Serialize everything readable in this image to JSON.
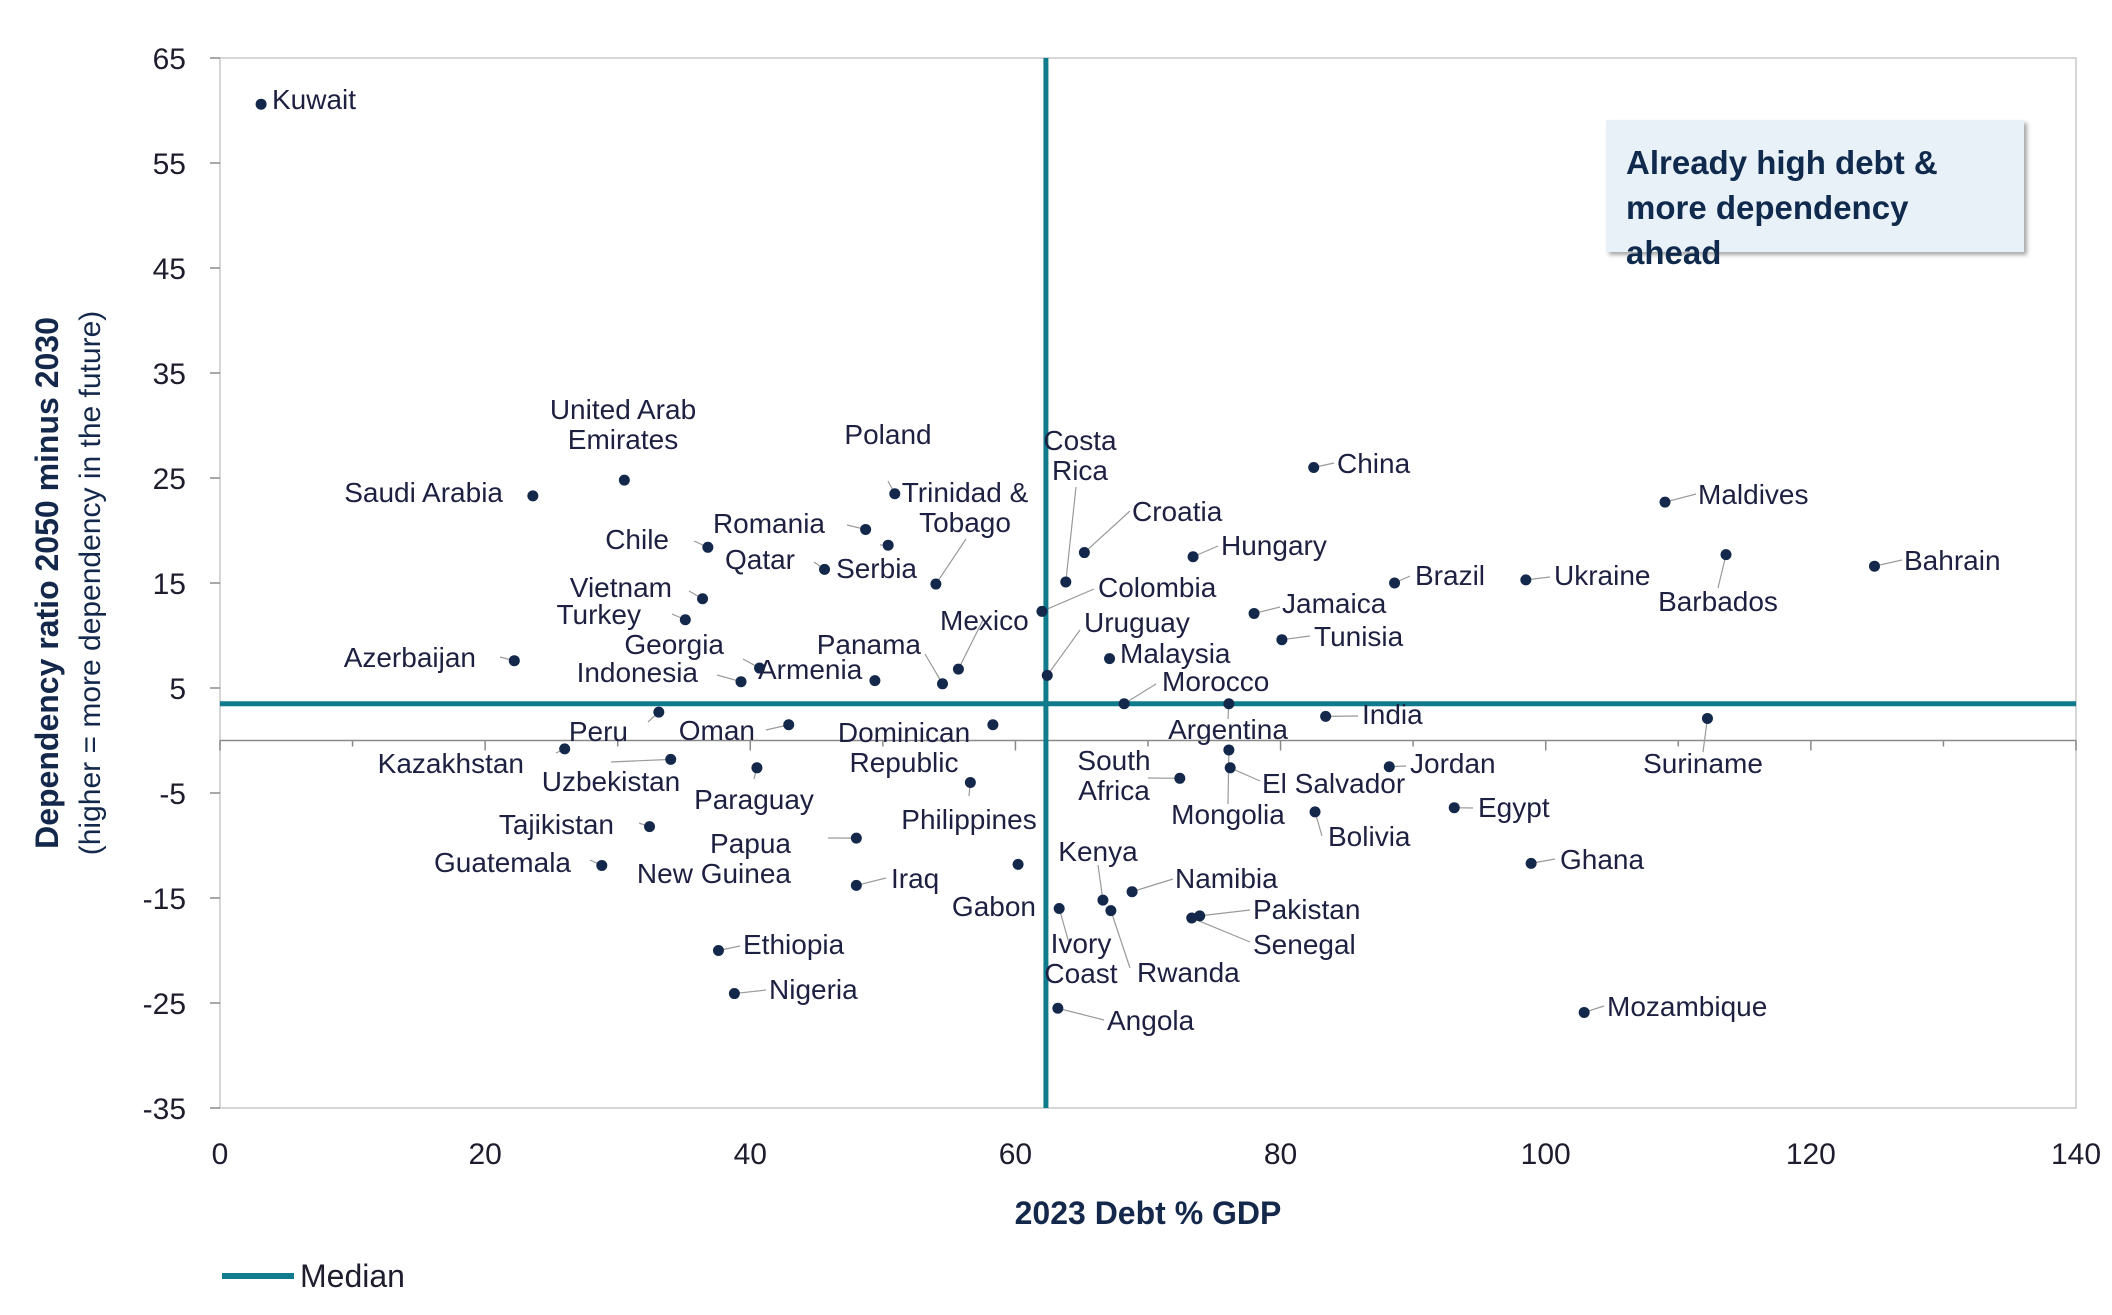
{
  "chart_data": {
    "type": "scatter",
    "title": "",
    "xlabel": "2023 Debt % GDP",
    "ylabel": "Dependency ratio 2050 minus 2030",
    "ylabel_sub": "(higher = more dependency in the future)",
    "xlim": [
      0,
      140
    ],
    "ylim": [
      -35,
      65
    ],
    "x_ticks": [
      0,
      20,
      40,
      60,
      80,
      100,
      120,
      140
    ],
    "y_ticks": [
      65,
      55,
      45,
      35,
      25,
      15,
      5,
      -5,
      -15,
      -25,
      -35
    ],
    "grid": false,
    "legend": {
      "position": "bottom-left",
      "entries": [
        {
          "name": "Median",
          "color": "#0f7b8c"
        }
      ]
    },
    "median": {
      "x": 62.3,
      "y": 3.5
    },
    "annotation": "Already high debt & more dependency ahead",
    "colors": {
      "point": "#13284b",
      "median": "#0f7b8c",
      "leader": "#9a9a9a"
    },
    "points": [
      {
        "name": "Kuwait",
        "label_lines": [
          "Kuwait"
        ],
        "x": 3.1,
        "y": 60.6
      },
      {
        "name": "Saudi Arabia",
        "label_lines": [
          "Saudi Arabia"
        ],
        "x": 23.6,
        "y": 23.3
      },
      {
        "name": "United Arab Emirates",
        "label_lines": [
          "United Arab",
          "Emirates"
        ],
        "x": 30.5,
        "y": 24.8
      },
      {
        "name": "Chile",
        "label_lines": [
          "Chile"
        ],
        "x": 36.8,
        "y": 18.4
      },
      {
        "name": "Romania",
        "label_lines": [
          "Romania"
        ],
        "x": 48.7,
        "y": 20.1
      },
      {
        "name": "Poland",
        "label_lines": [
          "Poland"
        ],
        "x": 50.9,
        "y": 23.5
      },
      {
        "name": "Trinidad & Tobago",
        "label_lines": [
          "Trinidad &",
          "Tobago"
        ],
        "x": 54.0,
        "y": 14.9
      },
      {
        "name": "Serbia",
        "label_lines": [
          "Serbia"
        ],
        "x": 50.4,
        "y": 18.6
      },
      {
        "name": "Qatar",
        "label_lines": [
          "Qatar"
        ],
        "x": 45.6,
        "y": 16.3
      },
      {
        "name": "Vietnam",
        "label_lines": [
          "Vietnam"
        ],
        "x": 36.4,
        "y": 13.5
      },
      {
        "name": "Turkey",
        "label_lines": [
          "Turkey"
        ],
        "x": 35.1,
        "y": 11.5
      },
      {
        "name": "Azerbaijan",
        "label_lines": [
          "Azerbaijan"
        ],
        "x": 22.2,
        "y": 7.6
      },
      {
        "name": "Georgia",
        "label_lines": [
          "Georgia"
        ],
        "x": 40.7,
        "y": 6.9
      },
      {
        "name": "Indonesia",
        "label_lines": [
          "Indonesia"
        ],
        "x": 39.3,
        "y": 5.6
      },
      {
        "name": "Armenia",
        "label_lines": [
          "Armenia"
        ],
        "x": 49.4,
        "y": 5.7
      },
      {
        "name": "Panama",
        "label_lines": [
          "Panama"
        ],
        "x": 54.5,
        "y": 5.4
      },
      {
        "name": "Mexico",
        "label_lines": [
          "Mexico"
        ],
        "x": 55.7,
        "y": 6.8
      },
      {
        "name": "Costa Rica",
        "label_lines": [
          "Costa",
          "Rica"
        ],
        "x": 63.8,
        "y": 15.1
      },
      {
        "name": "Croatia",
        "label_lines": [
          "Croatia"
        ],
        "x": 65.2,
        "y": 17.9
      },
      {
        "name": "Colombia",
        "label_lines": [
          "Colombia"
        ],
        "x": 62.0,
        "y": 12.3
      },
      {
        "name": "Uruguay",
        "label_lines": [
          "Uruguay"
        ],
        "x": 62.4,
        "y": 6.2
      },
      {
        "name": "Malaysia",
        "label_lines": [
          "Malaysia"
        ],
        "x": 67.1,
        "y": 7.8
      },
      {
        "name": "Morocco",
        "label_lines": [
          "Morocco"
        ],
        "x": 68.2,
        "y": 3.5
      },
      {
        "name": "China",
        "label_lines": [
          "China"
        ],
        "x": 82.5,
        "y": 26.0
      },
      {
        "name": "Hungary",
        "label_lines": [
          "Hungary"
        ],
        "x": 73.4,
        "y": 17.5
      },
      {
        "name": "Jamaica",
        "label_lines": [
          "Jamaica"
        ],
        "x": 78.0,
        "y": 12.1
      },
      {
        "name": "Tunisia",
        "label_lines": [
          "Tunisia"
        ],
        "x": 80.1,
        "y": 9.6
      },
      {
        "name": "Brazil",
        "label_lines": [
          "Brazil"
        ],
        "x": 88.6,
        "y": 15.0
      },
      {
        "name": "Ukraine",
        "label_lines": [
          "Ukraine"
        ],
        "x": 98.5,
        "y": 15.3
      },
      {
        "name": "Maldives",
        "label_lines": [
          "Maldives"
        ],
        "x": 109.0,
        "y": 22.7
      },
      {
        "name": "Barbados",
        "label_lines": [
          "Barbados"
        ],
        "x": 113.6,
        "y": 17.7
      },
      {
        "name": "Bahrain",
        "label_lines": [
          "Bahrain"
        ],
        "x": 124.8,
        "y": 16.6
      },
      {
        "name": "India",
        "label_lines": [
          "India"
        ],
        "x": 83.4,
        "y": 2.3
      },
      {
        "name": "Suriname",
        "label_lines": [
          "Suriname"
        ],
        "x": 112.2,
        "y": 2.1
      },
      {
        "name": "Argentina",
        "label_lines": [
          "Argentina"
        ],
        "x": 76.1,
        "y": 3.5
      },
      {
        "name": "Peru",
        "label_lines": [
          "Peru"
        ],
        "x": 33.1,
        "y": 2.7
      },
      {
        "name": "Kazakhstan",
        "label_lines": [
          "Kazakhstan"
        ],
        "x": 26.0,
        "y": -0.8
      },
      {
        "name": "Oman",
        "label_lines": [
          "Oman"
        ],
        "x": 42.9,
        "y": 1.5
      },
      {
        "name": "Uzbekistan",
        "label_lines": [
          "Uzbekistan"
        ],
        "x": 34.0,
        "y": -1.8
      },
      {
        "name": "Paraguay",
        "label_lines": [
          "Paraguay"
        ],
        "x": 40.5,
        "y": -2.6
      },
      {
        "name": "Dominican Republic",
        "label_lines": [
          "Dominican",
          "Republic"
        ],
        "x": 58.3,
        "y": 1.5
      },
      {
        "name": "Philippines",
        "label_lines": [
          "Philippines"
        ],
        "x": 56.6,
        "y": -4.0
      },
      {
        "name": "Tajikistan",
        "label_lines": [
          "Tajikistan"
        ],
        "x": 32.4,
        "y": -8.2
      },
      {
        "name": "Guatemala",
        "label_lines": [
          "Guatemala"
        ],
        "x": 28.8,
        "y": -11.9
      },
      {
        "name": "Papua New Guinea",
        "label_lines": [
          "Papua",
          "New Guinea"
        ],
        "x": 48.0,
        "y": -9.3
      },
      {
        "name": "Iraq",
        "label_lines": [
          "Iraq"
        ],
        "x": 48.0,
        "y": -13.8
      },
      {
        "name": "Gabon",
        "label_lines": [
          "Gabon"
        ],
        "x": 60.2,
        "y": -11.8
      },
      {
        "name": "South Africa",
        "label_lines": [
          "South",
          "Africa"
        ],
        "x": 72.4,
        "y": -3.6
      },
      {
        "name": "El Salvador",
        "label_lines": [
          "El Salvador"
        ],
        "x": 76.2,
        "y": -2.6
      },
      {
        "name": "Mongolia",
        "label_lines": [
          "Mongolia"
        ],
        "x": 76.1,
        "y": -0.9
      },
      {
        "name": "Bolivia",
        "label_lines": [
          "Bolivia"
        ],
        "x": 82.6,
        "y": -6.8
      },
      {
        "name": "Jordan",
        "label_lines": [
          "Jordan"
        ],
        "x": 88.2,
        "y": -2.5
      },
      {
        "name": "Egypt",
        "label_lines": [
          "Egypt"
        ],
        "x": 93.1,
        "y": -6.4
      },
      {
        "name": "Ghana",
        "label_lines": [
          "Ghana"
        ],
        "x": 98.9,
        "y": -11.7
      },
      {
        "name": "Kenya",
        "label_lines": [
          "Kenya"
        ],
        "x": 66.6,
        "y": -15.2
      },
      {
        "name": "Namibia",
        "label_lines": [
          "Namibia"
        ],
        "x": 68.8,
        "y": -14.4
      },
      {
        "name": "Rwanda",
        "label_lines": [
          "Rwanda"
        ],
        "x": 67.2,
        "y": -16.2
      },
      {
        "name": "Pakistan",
        "label_lines": [
          "Pakistan"
        ],
        "x": 73.9,
        "y": -16.7
      },
      {
        "name": "Senegal",
        "label_lines": [
          "Senegal"
        ],
        "x": 73.3,
        "y": -16.9
      },
      {
        "name": "Ivory Coast",
        "label_lines": [
          "Ivory",
          "Coast"
        ],
        "x": 63.3,
        "y": -16.0
      },
      {
        "name": "Angola",
        "label_lines": [
          "Angola"
        ],
        "x": 63.2,
        "y": -25.5
      },
      {
        "name": "Ethiopia",
        "label_lines": [
          "Ethiopia"
        ],
        "x": 37.6,
        "y": -20.0
      },
      {
        "name": "Nigeria",
        "label_lines": [
          "Nigeria"
        ],
        "x": 38.8,
        "y": -24.1
      },
      {
        "name": "Mozambique",
        "label_lines": [
          "Mozambique"
        ],
        "x": 102.9,
        "y": -25.9
      }
    ]
  }
}
